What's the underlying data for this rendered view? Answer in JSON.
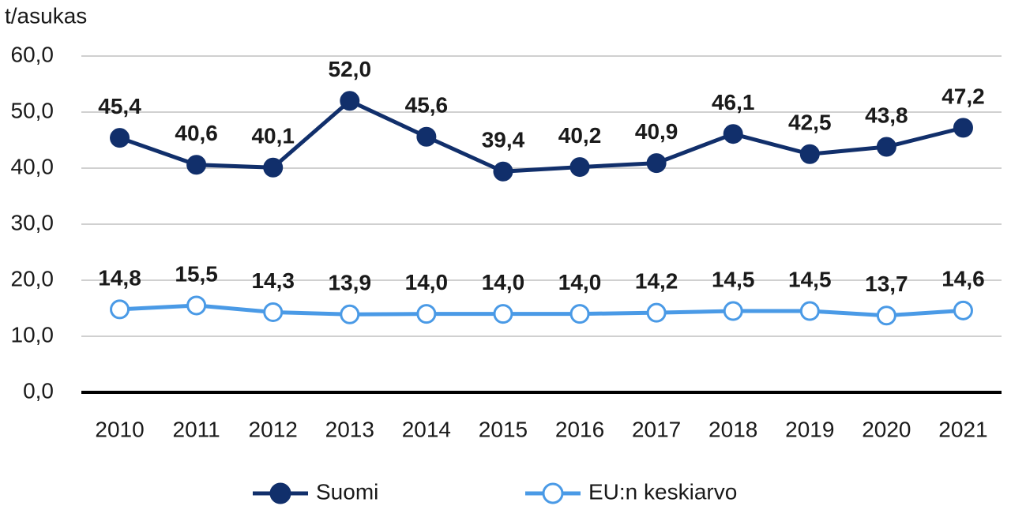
{
  "chart_data": {
    "type": "line",
    "y_axis_label": "t/asukas",
    "categories": [
      "2010",
      "2011",
      "2012",
      "2013",
      "2014",
      "2015",
      "2016",
      "2017",
      "2018",
      "2019",
      "2020",
      "2021"
    ],
    "series": [
      {
        "name": "Suomi",
        "color": "#112f6b",
        "values": [
          45.4,
          40.6,
          40.1,
          52.0,
          45.6,
          39.4,
          40.2,
          40.9,
          46.1,
          42.5,
          43.8,
          47.2
        ],
        "value_labels": [
          "45,4",
          "40,6",
          "40,1",
          "52,0",
          "45,6",
          "39,4",
          "40,2",
          "40,9",
          "46,1",
          "42,5",
          "43,8",
          "47,2"
        ]
      },
      {
        "name": "EU:n keskiarvo",
        "color": "#4a9ae6",
        "values": [
          14.8,
          15.5,
          14.3,
          13.9,
          14.0,
          14.0,
          14.0,
          14.2,
          14.5,
          14.5,
          13.7,
          14.6
        ],
        "value_labels": [
          "14,8",
          "15,5",
          "14,3",
          "13,9",
          "14,0",
          "14,0",
          "14,0",
          "14,2",
          "14,5",
          "14,5",
          "13,7",
          "14,6"
        ]
      }
    ],
    "ylim": [
      0,
      60
    ],
    "yticks": [
      {
        "value": 0,
        "label": "0,0"
      },
      {
        "value": 10,
        "label": "10,0"
      },
      {
        "value": 20,
        "label": "20,0"
      },
      {
        "value": 30,
        "label": "30,0"
      },
      {
        "value": 40,
        "label": "40,0"
      },
      {
        "value": 50,
        "label": "50,0"
      },
      {
        "value": 60,
        "label": "60,0"
      }
    ],
    "grid": true,
    "legend": "bottom"
  }
}
